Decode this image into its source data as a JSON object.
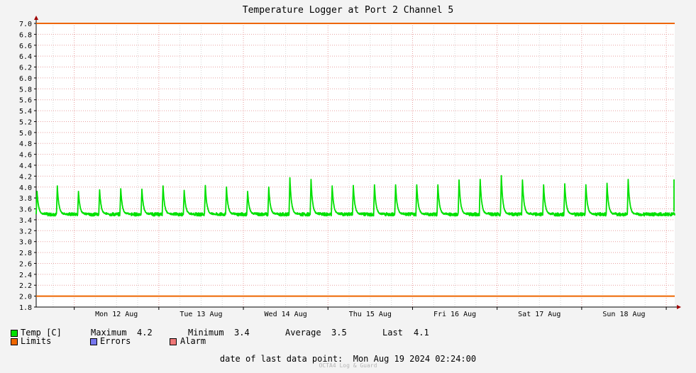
{
  "chart_data": {
    "type": "line",
    "title": "Temperature Logger at Port 2 Channel 5",
    "ylim": [
      1.8,
      7.0
    ],
    "y_ticks": [
      "1.8",
      "2.0",
      "2.2",
      "2.4",
      "2.6",
      "2.8",
      "3.0",
      "3.2",
      "3.4",
      "3.6",
      "3.8",
      "4.0",
      "4.2",
      "4.4",
      "4.6",
      "4.8",
      "5.0",
      "5.2",
      "5.4",
      "5.6",
      "5.8",
      "6.0",
      "6.2",
      "6.4",
      "6.6",
      "6.8",
      "7.0"
    ],
    "x_ticks": [
      "Mon 12 Aug",
      "Tue 13 Aug",
      "Wed 14 Aug",
      "Thu 15 Aug",
      "Fri 16 Aug",
      "Sat 17 Aug",
      "Sun 18 Aug"
    ],
    "x_range_days": [
      11.55,
      19.1
    ],
    "limits": [
      7.0,
      2.0
    ],
    "series": [
      {
        "name": "Temp [C]",
        "color": "#00e000",
        "baseline": 3.5,
        "peaks": [
          {
            "x": 11.56,
            "y": 3.92
          },
          {
            "x": 11.8,
            "y": 4.02
          },
          {
            "x": 12.05,
            "y": 3.92
          },
          {
            "x": 12.3,
            "y": 3.95
          },
          {
            "x": 12.55,
            "y": 3.97
          },
          {
            "x": 12.8,
            "y": 3.96
          },
          {
            "x": 13.05,
            "y": 4.02
          },
          {
            "x": 13.3,
            "y": 3.94
          },
          {
            "x": 13.55,
            "y": 4.03
          },
          {
            "x": 13.8,
            "y": 4.0
          },
          {
            "x": 14.05,
            "y": 3.92
          },
          {
            "x": 14.3,
            "y": 4.0
          },
          {
            "x": 14.55,
            "y": 4.17
          },
          {
            "x": 14.8,
            "y": 4.14
          },
          {
            "x": 15.05,
            "y": 4.02
          },
          {
            "x": 15.3,
            "y": 4.03
          },
          {
            "x": 15.55,
            "y": 4.04
          },
          {
            "x": 15.8,
            "y": 4.04
          },
          {
            "x": 16.05,
            "y": 4.04
          },
          {
            "x": 16.3,
            "y": 4.04
          },
          {
            "x": 16.55,
            "y": 4.13
          },
          {
            "x": 16.8,
            "y": 4.14
          },
          {
            "x": 17.05,
            "y": 4.21
          },
          {
            "x": 17.3,
            "y": 4.13
          },
          {
            "x": 17.55,
            "y": 4.04
          },
          {
            "x": 17.8,
            "y": 4.05
          },
          {
            "x": 18.05,
            "y": 4.04
          },
          {
            "x": 18.3,
            "y": 4.06
          },
          {
            "x": 18.55,
            "y": 4.14
          }
        ]
      }
    ],
    "grid": true
  },
  "legend": {
    "temp_label": "Temp [C]",
    "maximum_label": "Maximum",
    "maximum_value": "4.2",
    "minimum_label": "Minimum",
    "minimum_value": "3.4",
    "average_label": "Average",
    "average_value": "3.5",
    "last_label": "Last",
    "last_value": "4.1",
    "limits_label": "Limits",
    "errors_label": "Errors",
    "alarm_label": "Alarm"
  },
  "colors": {
    "temp": "#00e000",
    "limits": "#ee6600",
    "errors": "#7777ee",
    "alarm": "#ee7777"
  },
  "footer": {
    "last_point": "date of last data point:  Mon Aug 19 2024 02:24:00",
    "watermark": "OCTA4 Log & Guard"
  }
}
